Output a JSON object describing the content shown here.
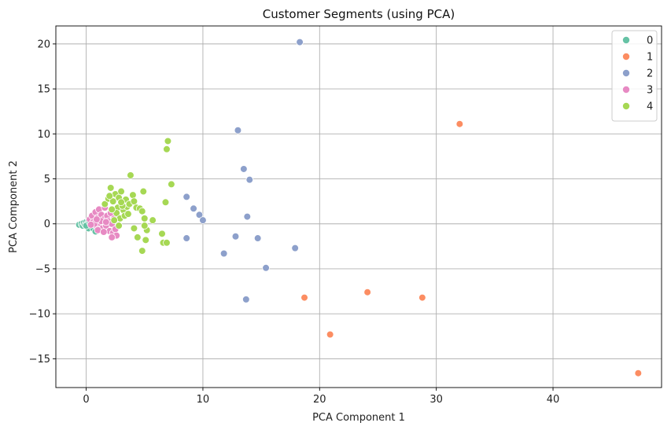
{
  "chart_data": {
    "type": "scatter",
    "title": "Customer Segments (using PCA)",
    "xlabel": "PCA Component 1",
    "ylabel": "PCA Component 2",
    "xlim": [
      -2.6,
      49.3
    ],
    "ylim": [
      -18.2,
      22.0
    ],
    "xticks": [
      0,
      10,
      20,
      30,
      40
    ],
    "yticks": [
      -15,
      -10,
      -5,
      0,
      5,
      10,
      15,
      20
    ],
    "grid": true,
    "legend_position": "top-right",
    "series": [
      {
        "name": "0",
        "color": "#66c2a5",
        "points": [
          [
            -0.6,
            -0.1
          ],
          [
            -0.4,
            0.0
          ],
          [
            -0.3,
            -0.2
          ],
          [
            -0.2,
            0.1
          ],
          [
            -0.1,
            -0.1
          ],
          [
            0.0,
            0.2
          ],
          [
            0.1,
            0.0
          ],
          [
            0.1,
            -0.3
          ],
          [
            0.2,
            0.3
          ],
          [
            0.3,
            -0.1
          ],
          [
            0.4,
            0.1
          ],
          [
            0.5,
            -0.2
          ],
          [
            0.6,
            0.3
          ],
          [
            0.7,
            0.0
          ],
          [
            0.8,
            -0.4
          ],
          [
            0.9,
            0.1
          ],
          [
            0.2,
            -0.5
          ],
          [
            0.0,
            -0.2
          ],
          [
            0.6,
            -0.5
          ],
          [
            1.0,
            -0.2
          ],
          [
            0.3,
            0.2
          ],
          [
            0.8,
            -0.85
          ]
        ]
      },
      {
        "name": "1",
        "color": "#fc8d62",
        "points": [
          [
            32.0,
            11.1
          ],
          [
            18.7,
            -8.2
          ],
          [
            24.1,
            -7.6
          ],
          [
            28.8,
            -8.2
          ],
          [
            20.9,
            -12.3
          ],
          [
            47.3,
            -16.6
          ]
        ]
      },
      {
        "name": "2",
        "color": "#8da0cb",
        "points": [
          [
            18.3,
            20.2
          ],
          [
            13.0,
            10.4
          ],
          [
            13.5,
            6.1
          ],
          [
            14.0,
            4.9
          ],
          [
            8.6,
            3.0
          ],
          [
            9.2,
            1.7
          ],
          [
            9.7,
            1.0
          ],
          [
            10.0,
            0.4
          ],
          [
            13.8,
            0.8
          ],
          [
            8.6,
            -1.6
          ],
          [
            12.8,
            -1.4
          ],
          [
            14.7,
            -1.6
          ],
          [
            11.8,
            -3.3
          ],
          [
            17.9,
            -2.7
          ],
          [
            15.4,
            -4.9
          ],
          [
            13.7,
            -8.4
          ]
        ]
      },
      {
        "name": "3",
        "color": "#e78ac3",
        "points": [
          [
            0.3,
            0.5
          ],
          [
            0.5,
            0.9
          ],
          [
            0.6,
            0.2
          ],
          [
            0.8,
            1.3
          ],
          [
            0.9,
            -0.3
          ],
          [
            1.0,
            0.7
          ],
          [
            1.1,
            1.6
          ],
          [
            1.2,
            0.1
          ],
          [
            1.3,
            1.0
          ],
          [
            1.4,
            -0.5
          ],
          [
            1.5,
            0.5
          ],
          [
            1.6,
            1.8
          ],
          [
            1.7,
            -0.2
          ],
          [
            1.8,
            0.9
          ],
          [
            1.9,
            0.3
          ],
          [
            2.0,
            -0.8
          ],
          [
            2.1,
            1.2
          ],
          [
            2.2,
            0.0
          ],
          [
            2.3,
            -1.0
          ],
          [
            2.4,
            0.6
          ],
          [
            2.5,
            -0.6
          ],
          [
            2.6,
            -1.3
          ],
          [
            1.0,
            -0.7
          ],
          [
            1.3,
            0.3
          ],
          [
            0.7,
            0.0
          ],
          [
            2.2,
            -1.5
          ],
          [
            1.7,
            0.2
          ],
          [
            1.5,
            -0.9
          ],
          [
            0.4,
            -0.1
          ],
          [
            0.9,
            0.5
          ]
        ]
      },
      {
        "name": "4",
        "color": "#a6d854",
        "points": [
          [
            1.6,
            2.2
          ],
          [
            1.9,
            2.8
          ],
          [
            2.1,
            4.0
          ],
          [
            2.3,
            2.5
          ],
          [
            2.5,
            3.3
          ],
          [
            2.7,
            1.8
          ],
          [
            2.8,
            2.9
          ],
          [
            3.0,
            3.6
          ],
          [
            3.2,
            1.5
          ],
          [
            3.4,
            2.7
          ],
          [
            3.5,
            1.9
          ],
          [
            3.7,
            2.2
          ],
          [
            3.8,
            5.4
          ],
          [
            4.0,
            3.2
          ],
          [
            4.1,
            2.5
          ],
          [
            4.3,
            1.8
          ],
          [
            2.6,
            1.2
          ],
          [
            2.9,
            0.6
          ],
          [
            3.1,
            2.0
          ],
          [
            3.3,
            0.9
          ],
          [
            2.2,
            1.6
          ],
          [
            2.4,
            0.4
          ],
          [
            3.6,
            1.1
          ],
          [
            4.6,
            1.7
          ],
          [
            4.9,
            3.6
          ],
          [
            5.0,
            0.6
          ],
          [
            5.2,
            -0.7
          ],
          [
            5.7,
            0.4
          ],
          [
            4.8,
            1.4
          ],
          [
            5.0,
            -0.2
          ],
          [
            4.1,
            -0.5
          ],
          [
            4.4,
            -1.5
          ],
          [
            5.1,
            -1.8
          ],
          [
            4.8,
            -3.0
          ],
          [
            6.5,
            -1.1
          ],
          [
            6.6,
            -2.1
          ],
          [
            6.9,
            -2.1
          ],
          [
            6.8,
            2.4
          ],
          [
            6.9,
            8.3
          ],
          [
            7.0,
            9.2
          ],
          [
            7.3,
            4.4
          ],
          [
            2.0,
            3.1
          ],
          [
            3.0,
            2.4
          ],
          [
            2.8,
            -0.2
          ]
        ]
      }
    ]
  }
}
